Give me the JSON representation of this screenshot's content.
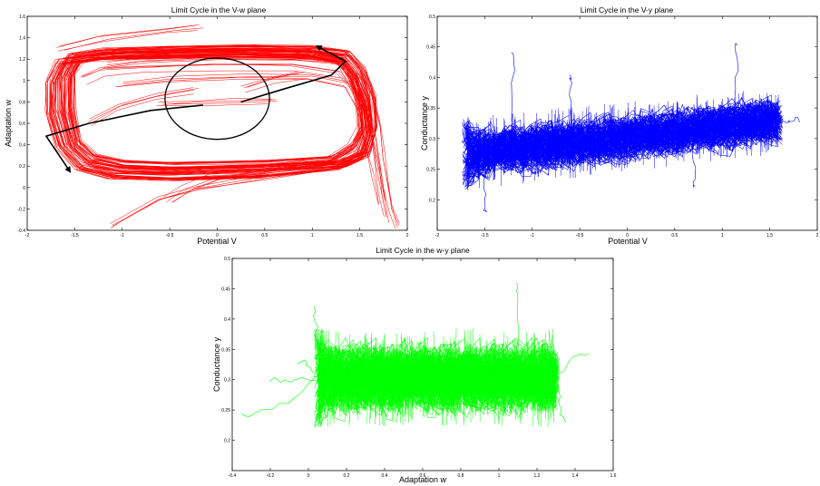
{
  "chart_data": [
    {
      "type": "line",
      "title": "Limit Cycle in the V-w plane",
      "xlabel": "Potential V",
      "ylabel": "Adaptation w",
      "xlim": [
        -2,
        2
      ],
      "ylim": [
        -0.4,
        1.6
      ],
      "xticks": [
        "-2",
        "-1.5",
        "-1",
        "-0.5",
        "0",
        "0.5",
        "1",
        "1.5",
        "2"
      ],
      "yticks": [
        "-0.4",
        "-0.2",
        "0",
        "0.2",
        "0.4",
        "0.6",
        "0.8",
        "1",
        "1.2",
        "1.4",
        "1.6"
      ],
      "color": "#ff0000",
      "series": [
        {
          "values": [
            [
              -1.65,
              1.02
            ],
            [
              -1.55,
              1.22
            ],
            [
              -1.2,
              1.27
            ],
            [
              -0.5,
              1.29
            ],
            [
              0.3,
              1.3
            ],
            [
              1.0,
              1.29
            ],
            [
              1.35,
              1.25
            ],
            [
              1.5,
              1.1
            ],
            [
              1.6,
              0.85
            ],
            [
              1.62,
              0.55
            ],
            [
              1.55,
              0.32
            ],
            [
              1.3,
              0.22
            ],
            [
              0.5,
              0.18
            ],
            [
              -0.5,
              0.15
            ],
            [
              -1.0,
              0.16
            ],
            [
              -1.35,
              0.22
            ],
            [
              -1.55,
              0.38
            ],
            [
              -1.65,
              0.7
            ],
            [
              -1.65,
              1.02
            ]
          ]
        },
        {
          "values": [
            [
              -1.75,
              1.0
            ],
            [
              -1.65,
              1.18
            ],
            [
              -1.3,
              1.22
            ],
            [
              -0.5,
              1.24
            ],
            [
              0.3,
              1.25
            ],
            [
              1.0,
              1.24
            ],
            [
              1.3,
              1.2
            ],
            [
              1.45,
              1.05
            ],
            [
              1.55,
              0.8
            ],
            [
              1.58,
              0.52
            ],
            [
              1.5,
              0.3
            ],
            [
              1.25,
              0.2
            ],
            [
              0.5,
              0.13
            ],
            [
              -0.5,
              0.1
            ],
            [
              -1.1,
              0.12
            ],
            [
              -1.45,
              0.2
            ],
            [
              -1.65,
              0.4
            ],
            [
              -1.75,
              0.7
            ],
            [
              -1.75,
              1.0
            ]
          ]
        },
        {
          "values": [
            [
              -1.55,
              1.05
            ],
            [
              -1.45,
              1.2
            ],
            [
              -1.1,
              1.24
            ],
            [
              -0.4,
              1.26
            ],
            [
              0.3,
              1.27
            ],
            [
              1.0,
              1.25
            ],
            [
              1.3,
              1.18
            ],
            [
              1.42,
              1.0
            ],
            [
              1.5,
              0.78
            ],
            [
              1.52,
              0.55
            ],
            [
              1.42,
              0.38
            ],
            [
              1.2,
              0.26
            ],
            [
              0.5,
              0.22
            ],
            [
              -0.5,
              0.2
            ],
            [
              -1.0,
              0.22
            ],
            [
              -1.3,
              0.28
            ],
            [
              -1.48,
              0.42
            ],
            [
              -1.55,
              0.72
            ],
            [
              -1.55,
              1.05
            ]
          ]
        },
        {
          "values": [
            [
              -1.2,
              1.15
            ],
            [
              -0.8,
              1.2
            ],
            [
              0.0,
              1.22
            ],
            [
              0.8,
              1.22
            ],
            [
              1.3,
              1.18
            ],
            [
              1.55,
              0.95
            ],
            [
              1.65,
              0.6
            ],
            [
              1.7,
              0.3
            ],
            [
              1.75,
              0.0
            ],
            [
              1.8,
              -0.2
            ],
            [
              1.85,
              -0.35
            ]
          ]
        },
        {
          "values": [
            [
              -1.4,
              1.0
            ],
            [
              -1.2,
              1.08
            ],
            [
              -0.8,
              1.1
            ],
            [
              0.0,
              1.12
            ],
            [
              0.8,
              1.12
            ],
            [
              1.3,
              1.05
            ],
            [
              1.55,
              0.8
            ],
            [
              1.65,
              0.5
            ],
            [
              1.7,
              0.2
            ],
            [
              1.75,
              -0.1
            ],
            [
              1.8,
              -0.3
            ]
          ]
        },
        {
          "values": [
            [
              -1.0,
              0.95
            ],
            [
              -0.5,
              1.0
            ],
            [
              0.3,
              1.02
            ],
            [
              1.0,
              1.02
            ],
            [
              1.4,
              0.95
            ],
            [
              1.55,
              0.7
            ],
            [
              1.62,
              0.4
            ],
            [
              1.7,
              0.1
            ],
            [
              1.75,
              -0.15
            ]
          ]
        },
        {
          "values": [
            [
              -1.65,
              1.3
            ],
            [
              -1.2,
              1.4
            ],
            [
              -0.5,
              1.47
            ],
            [
              -0.2,
              1.5
            ]
          ]
        },
        {
          "values": [
            [
              1.55,
              0.3
            ],
            [
              1.2,
              0.2
            ],
            [
              0.5,
              0.1
            ],
            [
              -0.2,
              0.0
            ],
            [
              -0.6,
              -0.1
            ],
            [
              -0.9,
              -0.25
            ],
            [
              -1.1,
              -0.35
            ]
          ]
        },
        {
          "values": [
            [
              1.5,
              0.35
            ],
            [
              1.2,
              0.26
            ],
            [
              0.5,
              0.18
            ],
            [
              0.0,
              0.1
            ],
            [
              -0.3,
              0.0
            ],
            [
              -0.5,
              -0.12
            ]
          ]
        },
        {
          "values": [
            [
              -0.6,
              0.78
            ],
            [
              -0.2,
              0.79
            ],
            [
              0.2,
              0.8
            ],
            [
              0.6,
              0.81
            ]
          ]
        },
        {
          "values": [
            [
              0.3,
              0.92
            ],
            [
              0.6,
              1.0
            ],
            [
              0.9,
              1.05
            ]
          ]
        },
        {
          "values": [
            [
              -1.3,
              0.6
            ],
            [
              -1.0,
              0.75
            ],
            [
              -0.6,
              0.85
            ],
            [
              -0.2,
              0.9
            ]
          ]
        }
      ],
      "annotations": {
        "circle": {
          "center": [
            0.0,
            0.83
          ],
          "radius_x": 0.55,
          "radius_y": 0.38
        },
        "arrow_upper": [
          [
            0.25,
            0.8
          ],
          [
            0.7,
            0.92
          ],
          [
            1.2,
            1.05
          ],
          [
            1.35,
            1.18
          ],
          [
            1.05,
            1.32
          ]
        ],
        "arrow_lower": [
          [
            -0.15,
            0.77
          ],
          [
            -0.7,
            0.72
          ],
          [
            -1.35,
            0.6
          ],
          [
            -1.8,
            0.48
          ],
          [
            -1.55,
            0.15
          ]
        ]
      }
    },
    {
      "type": "line",
      "title": "Limit Cycle in the V-y plane",
      "xlabel": "Potential V",
      "ylabel": "Conductance y",
      "xlim": [
        -2,
        2
      ],
      "ylim": [
        0.15,
        0.5
      ],
      "xticks": [
        "-2",
        "-1.5",
        "-1",
        "-0.5",
        "0",
        "0.5",
        "1",
        "1.5",
        "2"
      ],
      "yticks": [
        "0.2",
        "0.25",
        "0.3",
        "0.35",
        "0.4",
        "0.45",
        "0.5"
      ],
      "color": "#0000ff",
      "band": {
        "x_range": [
          -1.7,
          1.6
        ],
        "y_low_at_xmin": 0.215,
        "y_high_at_xmin": 0.335,
        "y_low_at_xmax": 0.275,
        "y_high_at_xmax": 0.385
      },
      "outliers": [
        [
          -1.2,
          0.44
        ],
        [
          -0.6,
          0.4
        ],
        [
          1.15,
          0.455
        ],
        [
          1.8,
          0.33
        ],
        [
          0.7,
          0.22
        ],
        [
          -1.5,
          0.18
        ]
      ]
    },
    {
      "type": "line",
      "title": "Limit Cycle in the w-y plane",
      "xlabel": "Adaptation w",
      "ylabel": "Conductance y",
      "xlim": [
        -0.4,
        1.6
      ],
      "ylim": [
        0.15,
        0.5
      ],
      "xticks": [
        "-0.4",
        "-0.2",
        "0",
        "0.2",
        "0.4",
        "0.6",
        "0.8",
        "1",
        "1.2",
        "1.4",
        "1.6"
      ],
      "yticks": [
        "0.2",
        "0.25",
        "0.3",
        "0.35",
        "0.4",
        "0.45",
        "0.5"
      ],
      "color": "#00ff00",
      "band": {
        "x_range": [
          0.05,
          1.3
        ],
        "y_low": 0.22,
        "y_high": 0.385
      },
      "outliers": [
        [
          -0.35,
          0.24
        ],
        [
          -0.2,
          0.3
        ],
        [
          -0.05,
          0.33
        ],
        [
          0.03,
          0.42
        ],
        [
          1.1,
          0.455
        ],
        [
          1.48,
          0.345
        ],
        [
          1.35,
          0.23
        ]
      ]
    }
  ]
}
